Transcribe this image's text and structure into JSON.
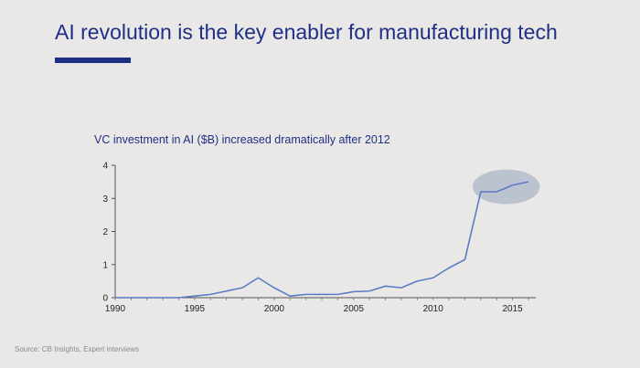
{
  "slide": {
    "title": "AI revolution is the key enabler for manufacturing tech",
    "source": "Source: CB Insights, Expert interviews"
  },
  "colors": {
    "title": "#1f2f86",
    "line": "#5b7bc6",
    "highlight": "#b3bccd",
    "background": "#e9e8e6"
  },
  "chart_data": {
    "type": "line",
    "title": "VC investment in AI ($B) increased dramatically after 2012",
    "xlabel": "",
    "ylabel": "",
    "xlim": [
      1990,
      2016
    ],
    "ylim": [
      0,
      4
    ],
    "x_ticks": [
      1990,
      1995,
      2000,
      2005,
      2010,
      2015
    ],
    "y_ticks": [
      0,
      1,
      2,
      3,
      4
    ],
    "grid": false,
    "legend": "none",
    "highlight": {
      "x_range": [
        2012.6,
        2016.6
      ],
      "y_center": 3.35,
      "shape": "ellipse"
    },
    "series": [
      {
        "x": [
          1990,
          1991,
          1992,
          1993,
          1994,
          1995,
          1996,
          1997,
          1998,
          1999,
          2000,
          2001,
          2002,
          2003,
          2004,
          2005,
          2006,
          2007,
          2008,
          2009,
          2010,
          2011,
          2012,
          2013,
          2014,
          2015,
          2016
        ],
        "values": [
          0,
          0,
          0,
          0,
          0,
          0.05,
          0.1,
          0.2,
          0.3,
          0.6,
          0.3,
          0.05,
          0.1,
          0.1,
          0.1,
          0.18,
          0.2,
          0.35,
          0.3,
          0.5,
          0.6,
          0.9,
          1.15,
          3.2,
          3.2,
          3.4,
          3.5
        ]
      }
    ]
  }
}
